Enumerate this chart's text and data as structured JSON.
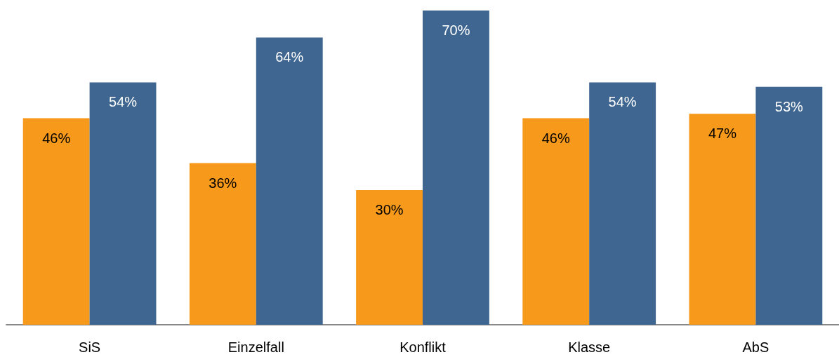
{
  "chart_data": {
    "type": "bar",
    "categories": [
      "SiS",
      "Einzelfall",
      "Konflikt",
      "Klasse",
      "AbS"
    ],
    "series": [
      {
        "color": "#f7991a",
        "values": [
          46,
          36,
          30,
          46,
          47
        ],
        "value_labels": [
          "46%",
          "36%",
          "30%",
          "46%",
          "47%"
        ]
      },
      {
        "color": "#3e6690",
        "values": [
          54,
          64,
          70,
          54,
          53
        ],
        "value_labels": [
          "54%",
          "64%",
          "70%",
          "54%",
          "53%"
        ]
      }
    ]
  }
}
